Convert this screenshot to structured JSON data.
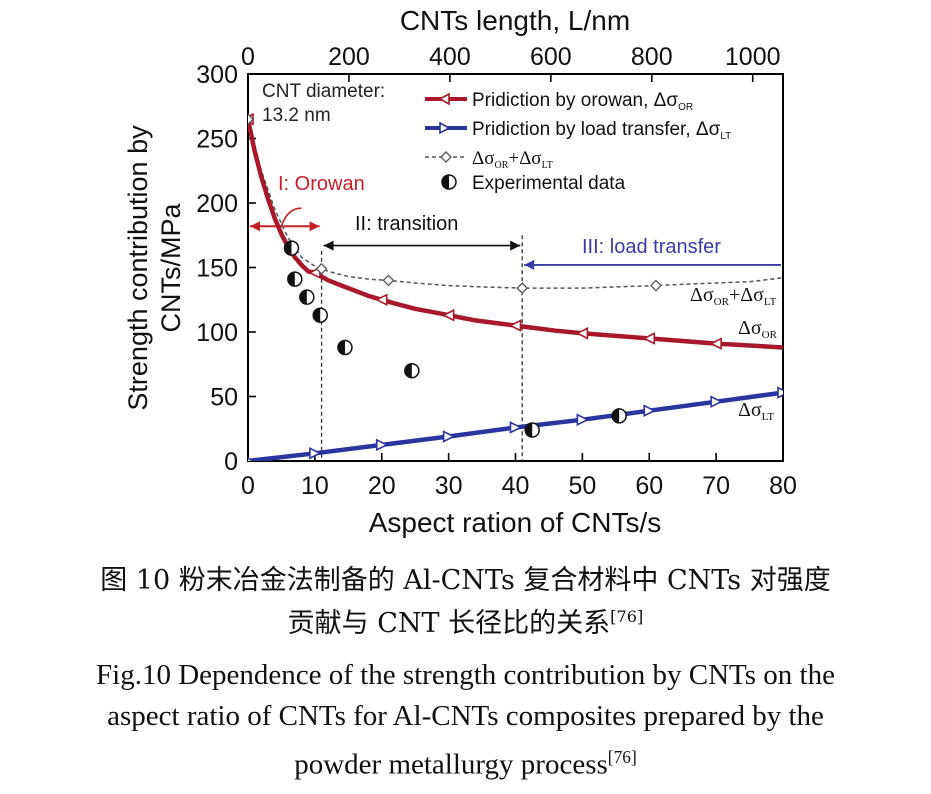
{
  "chart_data": {
    "type": "line",
    "xlabel": "Aspect ration of CNTs/s",
    "x2label": "CNTs length, L/nm",
    "ylabel_line1": "Strength contribution by",
    "ylabel_line2": "CNTs/MPa",
    "xlim": [
      0,
      80
    ],
    "x2lim": [
      0,
      1060
    ],
    "ylim": [
      0,
      300
    ],
    "xticks": [
      "0",
      "10",
      "20",
      "30",
      "40",
      "50",
      "60",
      "70",
      "80"
    ],
    "x2ticks": [
      "0",
      "200",
      "400",
      "600",
      "800",
      "1000"
    ],
    "yticks": [
      "0",
      "50",
      "100",
      "150",
      "200",
      "250",
      "300"
    ],
    "series": [
      {
        "name": "Prediction by orowan, Δσ_OR",
        "color": "#a8182a",
        "marker": "left-triangle",
        "x": [
          0,
          1,
          2,
          3,
          4,
          5,
          6,
          7,
          8,
          9,
          10,
          11,
          12,
          14,
          16,
          18,
          20,
          22,
          25,
          28,
          31,
          34,
          37,
          40,
          43,
          46,
          50,
          55,
          60,
          65,
          70,
          75,
          80
        ],
        "y": [
          265,
          240,
          220,
          203,
          188,
          176,
          166,
          158,
          152,
          147,
          146,
          143,
          140,
          136,
          132,
          128,
          125,
          122,
          118,
          115,
          112,
          109,
          107,
          105,
          103,
          101,
          99,
          97,
          95,
          93,
          91,
          89.5,
          88
        ]
      },
      {
        "name": "Prediction by load transfer, Δσ_LT",
        "color": "#2a35a0",
        "marker": "right-triangle",
        "x": [
          0,
          10,
          20,
          30,
          40,
          50,
          60,
          70,
          80
        ],
        "y": [
          0,
          6,
          12.5,
          19,
          26,
          32,
          39,
          46,
          53
        ]
      },
      {
        "name": "Δσ_OR+Δσ_LT",
        "color": "#555555",
        "marker": "open-diamond",
        "x": [
          0,
          2,
          4,
          6,
          8,
          10,
          12,
          15,
          18,
          21,
          25,
          30,
          35,
          41,
          45,
          50,
          55,
          61,
          65,
          70,
          75,
          80
        ],
        "y": [
          265,
          225,
          195,
          173,
          158,
          151,
          147,
          143,
          141,
          140,
          138,
          136,
          135,
          134,
          134,
          134,
          135,
          136,
          137,
          138,
          139,
          142
        ]
      },
      {
        "name": "Experimental data",
        "marker": "half-filled-circle",
        "x": [
          6.5,
          7,
          8.8,
          10.8,
          14.5,
          24.5,
          42.5,
          55.5
        ],
        "y": [
          165,
          141,
          127,
          113,
          88,
          70,
          24,
          35
        ]
      }
    ],
    "legend_text": {
      "orowan": "Pridiction by orowan, Δσ",
      "orowan_sub": "OR",
      "lt": "Pridiction by load transfer, Δσ",
      "lt_sub": "LT",
      "sum_a": "Δσ",
      "sum_a_sub": "OR",
      "sum_plus": "+Δσ",
      "sum_b_sub": "LT",
      "exp": "Experimental data"
    },
    "annotations": {
      "diameter_line1": "CNT diameter:",
      "diameter_line2": "13.2 nm",
      "region1": "I: Orowan",
      "region2": "II: transition",
      "region3": "III: load transfer",
      "label_sum": "Δσ",
      "label_sum_sub": "OR",
      "label_sum_plus": "+Δσ",
      "label_sum_sub2": "LT",
      "label_or": "Δσ",
      "label_or_sub": "OR",
      "label_lt": "Δσ",
      "label_lt_sub": "LT",
      "region_boundaries_x": [
        11,
        41
      ]
    },
    "colors": {
      "orowan": "#a8182a",
      "load_transfer": "#2a35a0",
      "region1": "#c42026",
      "region3": "#3a3aa8",
      "sum": "#555555"
    }
  },
  "caption": {
    "cn_line1": "图 10  粉末冶金法制备的 Al-CNTs 复合材料中 CNTs 对强度",
    "cn_line2": "贡献与 CNT 长径比的关系",
    "cn_ref": "[76]",
    "en_line1": "Fig.10  Dependence of the strength contribution by CNTs on the",
    "en_line2": "aspect ratio of CNTs for Al-CNTs composites prepared by the",
    "en_line3": "powder metallurgy process",
    "en_ref": "[76]"
  }
}
